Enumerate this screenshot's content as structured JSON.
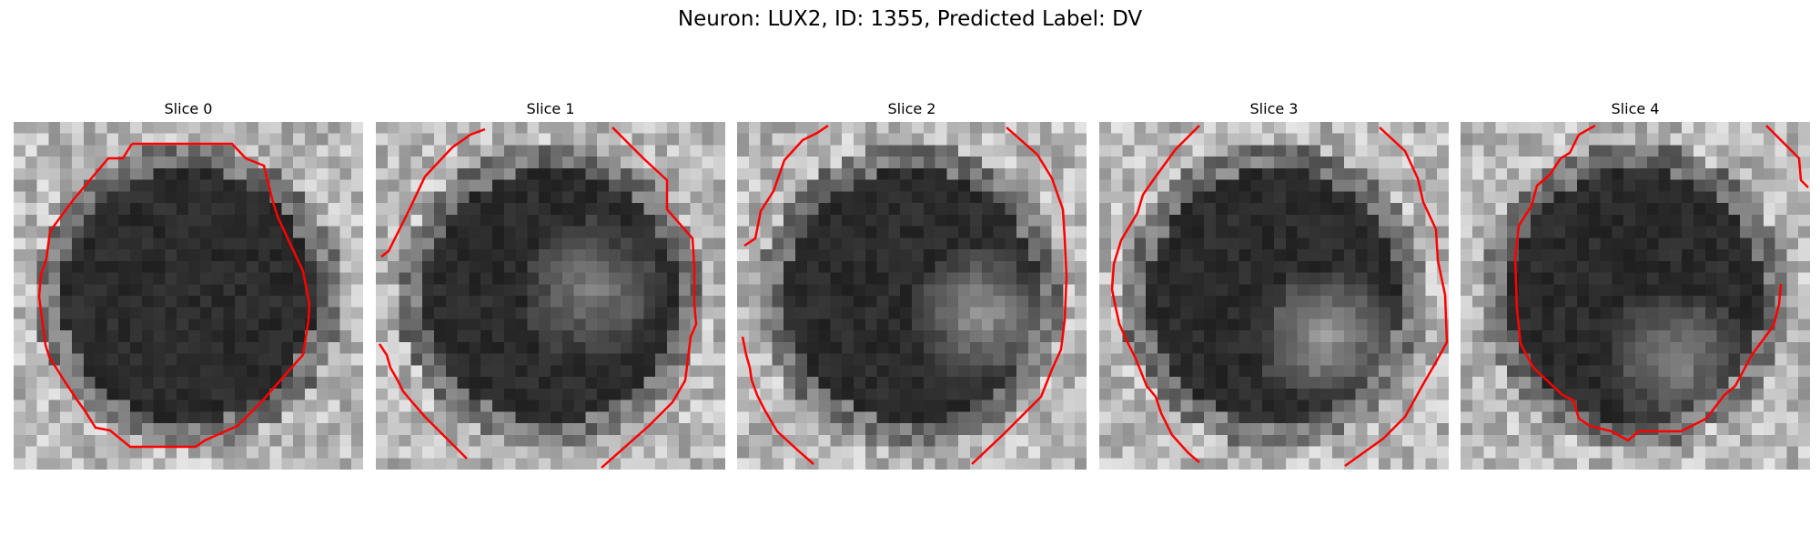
{
  "figure": {
    "title": "Neuron: LUX2, ID: 1355, Predicted Label: DV"
  },
  "panels": [
    {
      "title": "Slice 0",
      "contour": "#ff0000",
      "seed": 11,
      "bright": [
        0.0,
        0.0
      ],
      "brightness": 0.0
    },
    {
      "title": "Slice 1",
      "contour": "#ff0000",
      "seed": 23,
      "bright": [
        0.62,
        0.48
      ],
      "brightness": 0.3
    },
    {
      "title": "Slice 2",
      "contour": "#ff0000",
      "seed": 37,
      "bright": [
        0.7,
        0.55
      ],
      "brightness": 0.38
    },
    {
      "title": "Slice 3",
      "contour": "#ff0000",
      "seed": 41,
      "bright": [
        0.65,
        0.62
      ],
      "brightness": 0.42
    },
    {
      "title": "Slice 4",
      "contour": "#ff0000",
      "seed": 59,
      "bright": [
        0.62,
        0.68
      ],
      "brightness": 0.32
    }
  ]
}
